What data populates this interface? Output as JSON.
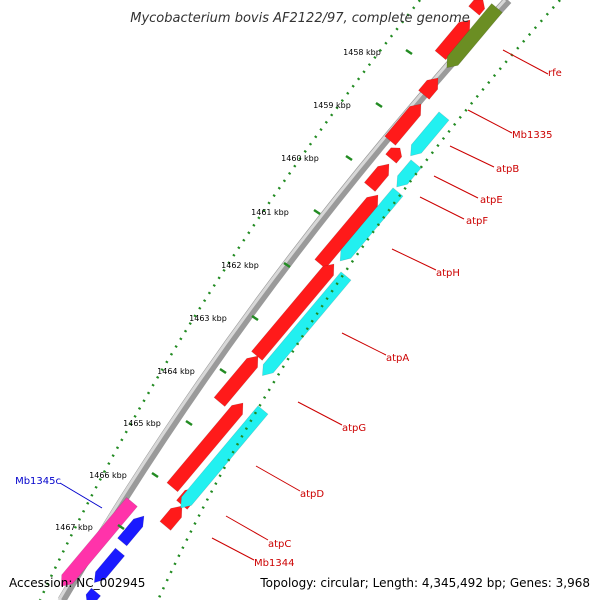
{
  "title": "Mycobacterium bovis AF2122/97, complete genome",
  "footer": {
    "accession": "Accession: NC_002945",
    "summary": "Topology: circular; Length: 4,345,492 bp; Genes: 3,968"
  },
  "colors": {
    "tick_green": "#228b22",
    "forward_gene": "#ff1a1a",
    "reverse_gene": "#22f0f0",
    "olive_gene": "#6b8e23",
    "pink_gene": "#ff33aa",
    "blue_gene": "#1a1aff",
    "label_red": "#cc0000",
    "label_blue": "#0000cc",
    "backbone": "#9a9a9a"
  },
  "ticks": [
    {
      "label": "1458 kbp"
    },
    {
      "label": "1459 kbp"
    },
    {
      "label": "1460 kbp"
    },
    {
      "label": "1461 kbp"
    },
    {
      "label": "1462 kbp"
    },
    {
      "label": "1463 kbp"
    },
    {
      "label": "1464 kbp"
    },
    {
      "label": "1465 kbp"
    },
    {
      "label": "1466 kbp"
    },
    {
      "label": "1467 kbp"
    }
  ],
  "gene_labels": [
    {
      "name": "rfe",
      "color": "#cc0000"
    },
    {
      "name": "Mb1335",
      "color": "#cc0000"
    },
    {
      "name": "atpB",
      "color": "#cc0000"
    },
    {
      "name": "atpE",
      "color": "#cc0000"
    },
    {
      "name": "atpF",
      "color": "#cc0000"
    },
    {
      "name": "atpH",
      "color": "#cc0000"
    },
    {
      "name": "atpA",
      "color": "#cc0000"
    },
    {
      "name": "atpG",
      "color": "#cc0000"
    },
    {
      "name": "atpD",
      "color": "#cc0000"
    },
    {
      "name": "atpC",
      "color": "#cc0000"
    },
    {
      "name": "Mb1344",
      "color": "#cc0000"
    },
    {
      "name": "Mb1345c",
      "color": "#0000cc"
    }
  ]
}
